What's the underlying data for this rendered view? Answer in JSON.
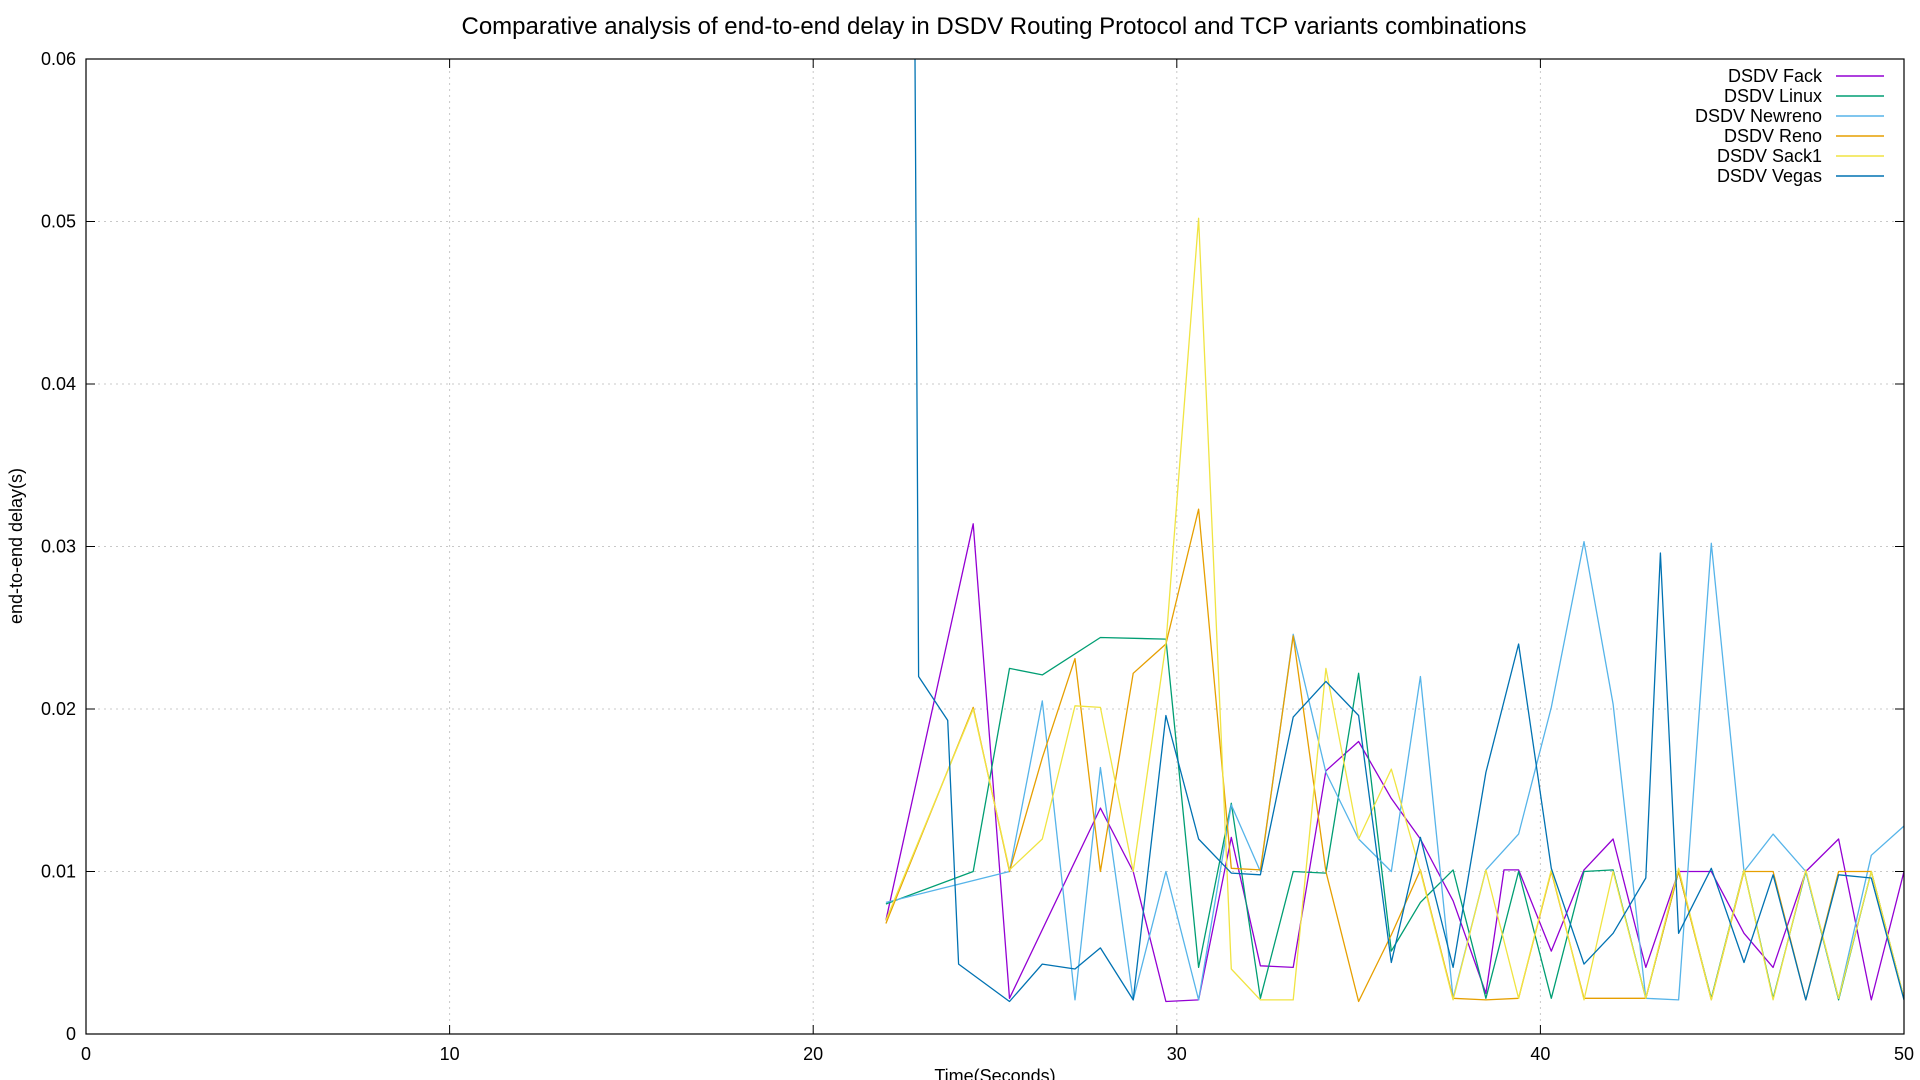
{
  "chart_data": {
    "type": "line",
    "title": "Comparative analysis of end-to-end delay in DSDV Routing Protocol and TCP variants combinations",
    "xlabel": "Time(Seconds)",
    "ylabel": "end-to-end delay(s)",
    "xlim": [
      0,
      50
    ],
    "ylim": [
      0,
      0.06
    ],
    "xticks": [
      0,
      10,
      20,
      30,
      40,
      50
    ],
    "yticks": [
      0,
      0.01,
      0.02,
      0.03,
      0.04,
      0.05,
      0.06
    ],
    "xtick_labels": [
      "0",
      "10",
      "20",
      "30",
      "40",
      "50"
    ],
    "ytick_labels": [
      "0",
      "0.01",
      "0.02",
      "0.03",
      "0.04",
      "0.05",
      "0.06"
    ],
    "grid": true,
    "legend_position": "top-right",
    "series": [
      {
        "name": "DSDV Fack",
        "color": "#9400d3",
        "x": [
          22.0,
          24.4,
          25.4,
          27.9,
          28.8,
          29.7,
          30.6,
          31.5,
          32.3,
          33.2,
          34.1,
          35.0,
          35.9,
          36.7,
          37.6,
          38.5,
          39.0,
          39.4,
          40.3,
          41.2,
          42.0,
          42.9,
          43.8,
          44.7,
          45.6,
          46.4,
          47.3,
          48.2,
          49.1,
          50.0
        ],
        "y": [
          0.007,
          0.0314,
          0.0022,
          0.0139,
          0.01,
          0.002,
          0.0021,
          0.0121,
          0.0042,
          0.0041,
          0.0162,
          0.018,
          0.0145,
          0.012,
          0.0082,
          0.0025,
          0.0101,
          0.0101,
          0.0051,
          0.0101,
          0.012,
          0.0041,
          0.01,
          0.01,
          0.0062,
          0.0041,
          0.01,
          0.012,
          0.0021,
          0.01
        ]
      },
      {
        "name": "DSDV Linux",
        "color": "#009e73",
        "x": [
          22.0,
          24.4,
          25.4,
          26.3,
          27.9,
          29.7,
          30.6,
          31.5,
          32.3,
          33.2,
          34.1,
          35.0,
          35.9,
          36.7,
          37.6,
          38.5,
          39.4,
          40.3,
          41.2,
          42.0,
          42.9,
          43.8,
          44.7,
          45.6,
          46.4,
          47.3,
          48.2,
          49.1,
          50.0
        ],
        "y": [
          0.008,
          0.01,
          0.0225,
          0.0221,
          0.0244,
          0.0243,
          0.0041,
          0.0142,
          0.0022,
          0.01,
          0.0099,
          0.0222,
          0.0051,
          0.0081,
          0.0101,
          0.0022,
          0.01,
          0.0022,
          0.01,
          0.0101,
          0.0022,
          0.01,
          0.0022,
          0.0101,
          0.0022,
          0.01,
          0.0021,
          0.01,
          0.0022
        ]
      },
      {
        "name": "DSDV Newreno",
        "color": "#56b4e9",
        "x": [
          22.0,
          25.4,
          26.3,
          27.2,
          27.9,
          28.8,
          29.7,
          30.6,
          31.5,
          32.3,
          33.2,
          34.1,
          35.0,
          35.9,
          36.7,
          37.6,
          38.5,
          39.4,
          40.3,
          41.2,
          42.0,
          42.9,
          43.8,
          44.7,
          45.6,
          46.4,
          47.3,
          48.2,
          49.1,
          50.0
        ],
        "y": [
          0.0081,
          0.01,
          0.0205,
          0.0021,
          0.0164,
          0.0021,
          0.01,
          0.0021,
          0.0141,
          0.01,
          0.0246,
          0.0161,
          0.012,
          0.01,
          0.022,
          0.0022,
          0.0101,
          0.0123,
          0.0201,
          0.0303,
          0.0203,
          0.0022,
          0.0021,
          0.0302,
          0.01,
          0.0123,
          0.01,
          0.0022,
          0.011,
          0.0128
        ]
      },
      {
        "name": "DSDV Reno",
        "color": "#e69f00",
        "x": [
          22.0,
          24.4,
          25.4,
          26.3,
          27.2,
          27.9,
          28.8,
          29.7,
          30.6,
          31.5,
          32.3,
          33.2,
          34.1,
          35.0,
          35.9,
          36.7,
          37.6,
          38.5,
          39.4,
          40.3,
          41.2,
          42.0,
          42.9,
          43.8,
          44.7,
          45.6,
          46.4,
          47.3,
          48.2,
          49.1,
          50.0
        ],
        "y": [
          0.0068,
          0.0201,
          0.01,
          0.017,
          0.0231,
          0.01,
          0.0222,
          0.024,
          0.0323,
          0.0102,
          0.0101,
          0.0245,
          0.01,
          0.002,
          0.0061,
          0.0101,
          0.0022,
          0.0021,
          0.0022,
          0.01,
          0.0022,
          0.0022,
          0.0022,
          0.01,
          0.0021,
          0.01,
          0.01,
          0.0021,
          0.01,
          0.01,
          0.0022
        ]
      },
      {
        "name": "DSDV Sack1",
        "color": "#f0e442",
        "x": [
          22.0,
          24.4,
          25.4,
          26.3,
          27.2,
          27.9,
          28.8,
          29.7,
          30.6,
          31.5,
          32.3,
          33.2,
          34.1,
          35.0,
          35.9,
          36.7,
          37.6,
          38.5,
          39.4,
          40.3,
          41.2,
          42.0,
          42.9,
          43.8,
          44.7,
          45.6,
          46.4,
          47.3,
          48.2,
          49.1,
          50.0
        ],
        "y": [
          0.007,
          0.02,
          0.0101,
          0.012,
          0.0202,
          0.0201,
          0.01,
          0.024,
          0.0502,
          0.004,
          0.0021,
          0.0021,
          0.0225,
          0.012,
          0.0163,
          0.01,
          0.0021,
          0.0101,
          0.0022,
          0.0101,
          0.0021,
          0.01,
          0.0022,
          0.0102,
          0.0021,
          0.0101,
          0.0021,
          0.0101,
          0.0022,
          0.01,
          0.0022
        ]
      },
      {
        "name": "DSDV Vegas",
        "color": "#0072b2",
        "x": [
          22.8,
          22.9,
          23.7,
          24.0,
          25.4,
          26.3,
          27.2,
          27.9,
          28.8,
          29.7,
          30.6,
          31.5,
          32.3,
          33.2,
          34.1,
          35.0,
          35.9,
          36.7,
          37.6,
          38.5,
          39.4,
          40.3,
          41.2,
          42.0,
          42.9,
          43.3,
          43.8,
          44.7,
          45.6,
          46.4,
          47.3,
          48.2,
          49.1,
          50.0
        ],
        "y": [
          0.06,
          0.022,
          0.0193,
          0.0043,
          0.002,
          0.0043,
          0.004,
          0.0053,
          0.0021,
          0.0196,
          0.012,
          0.0099,
          0.0098,
          0.0195,
          0.0217,
          0.0196,
          0.0044,
          0.0121,
          0.0041,
          0.0161,
          0.024,
          0.0102,
          0.0043,
          0.0062,
          0.0096,
          0.0296,
          0.0062,
          0.0102,
          0.0044,
          0.0098,
          0.0021,
          0.0098,
          0.0096,
          0.0021
        ]
      }
    ]
  }
}
